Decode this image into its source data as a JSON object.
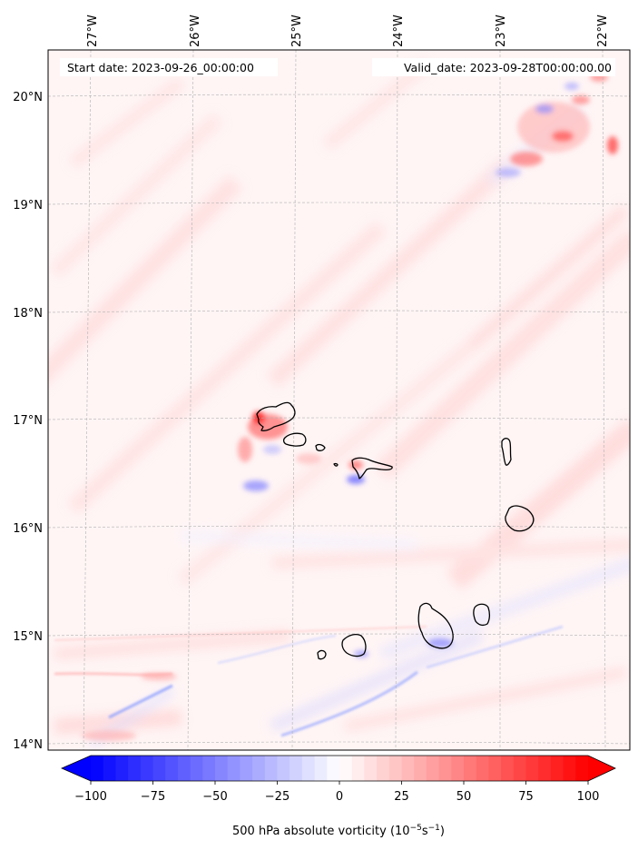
{
  "map": {
    "start_label": "Start date: 2023-09-26_00:00:00",
    "valid_label": "Valid_date: 2023-09-28T00:00:00.00",
    "lon_ticks": [
      "27°W",
      "26°W",
      "25°W",
      "24°W",
      "23°W",
      "22°W"
    ],
    "lat_ticks": [
      "20°N",
      "19°N",
      "18°N",
      "17°N",
      "16°N",
      "15°N",
      "14°N"
    ],
    "grid": true,
    "land_outline_color": "#000000",
    "field": "500 hPa absolute vorticity"
  },
  "colorbar": {
    "ticks": [
      "−100",
      "−75",
      "−50",
      "−25",
      "0",
      "25",
      "50",
      "75",
      "100"
    ],
    "tick_values": [
      -100,
      -75,
      -50,
      -25,
      0,
      25,
      50,
      75,
      100
    ],
    "range": [
      -100,
      100
    ],
    "extend": "both",
    "low_color": "#0000ff",
    "mid_color": "#ffffff",
    "high_color": "#ff0000",
    "label_main": "500 hPa absolute vorticity (10",
    "label_exp1": "−5",
    "label_mid": "s",
    "label_exp2": "−1",
    "label_end": ")"
  }
}
